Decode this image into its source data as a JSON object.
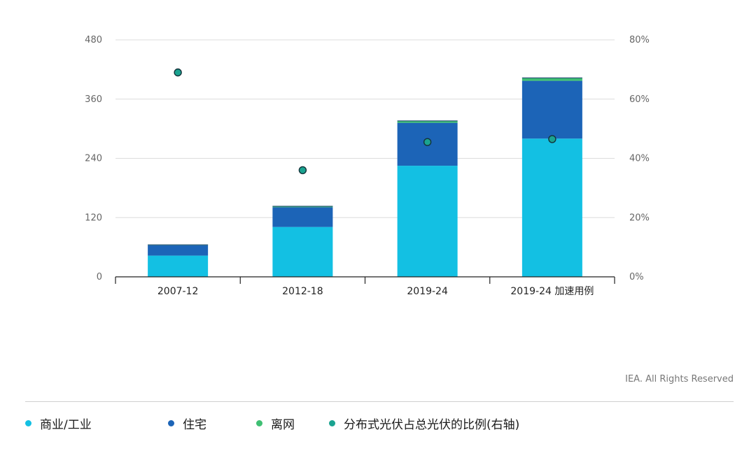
{
  "chart_data": {
    "type": "bar",
    "stacked": true,
    "categories": [
      "2007-12",
      "2012-18",
      "2019-24",
      "2019-24 加速用例"
    ],
    "series": [
      {
        "name": "商业/工业",
        "color": "#13c0e3",
        "values": [
          43,
          101,
          225,
          280
        ]
      },
      {
        "name": "住宅",
        "color": "#1c64b7",
        "values": [
          21,
          40,
          87,
          117
        ]
      },
      {
        "name": "离网",
        "color": "#3fbf73",
        "values": [
          1,
          2,
          4,
          6
        ]
      }
    ],
    "line_series": {
      "name": "分布式光伏占总光伏的比例(右轴)",
      "axis": "right",
      "color": "#1aa390",
      "values": [
        69,
        36,
        45.5,
        46.5
      ]
    },
    "y_left": {
      "min": 0,
      "max": 480,
      "ticks": [
        "0",
        "120",
        "240",
        "360",
        "480"
      ]
    },
    "y_right": {
      "min": 0,
      "max": 80,
      "ticks": [
        "0%",
        "20%",
        "40%",
        "60%",
        "80%"
      ]
    },
    "grid": true,
    "legend_position": "bottom"
  },
  "credit": "IEA. All Rights Reserved"
}
